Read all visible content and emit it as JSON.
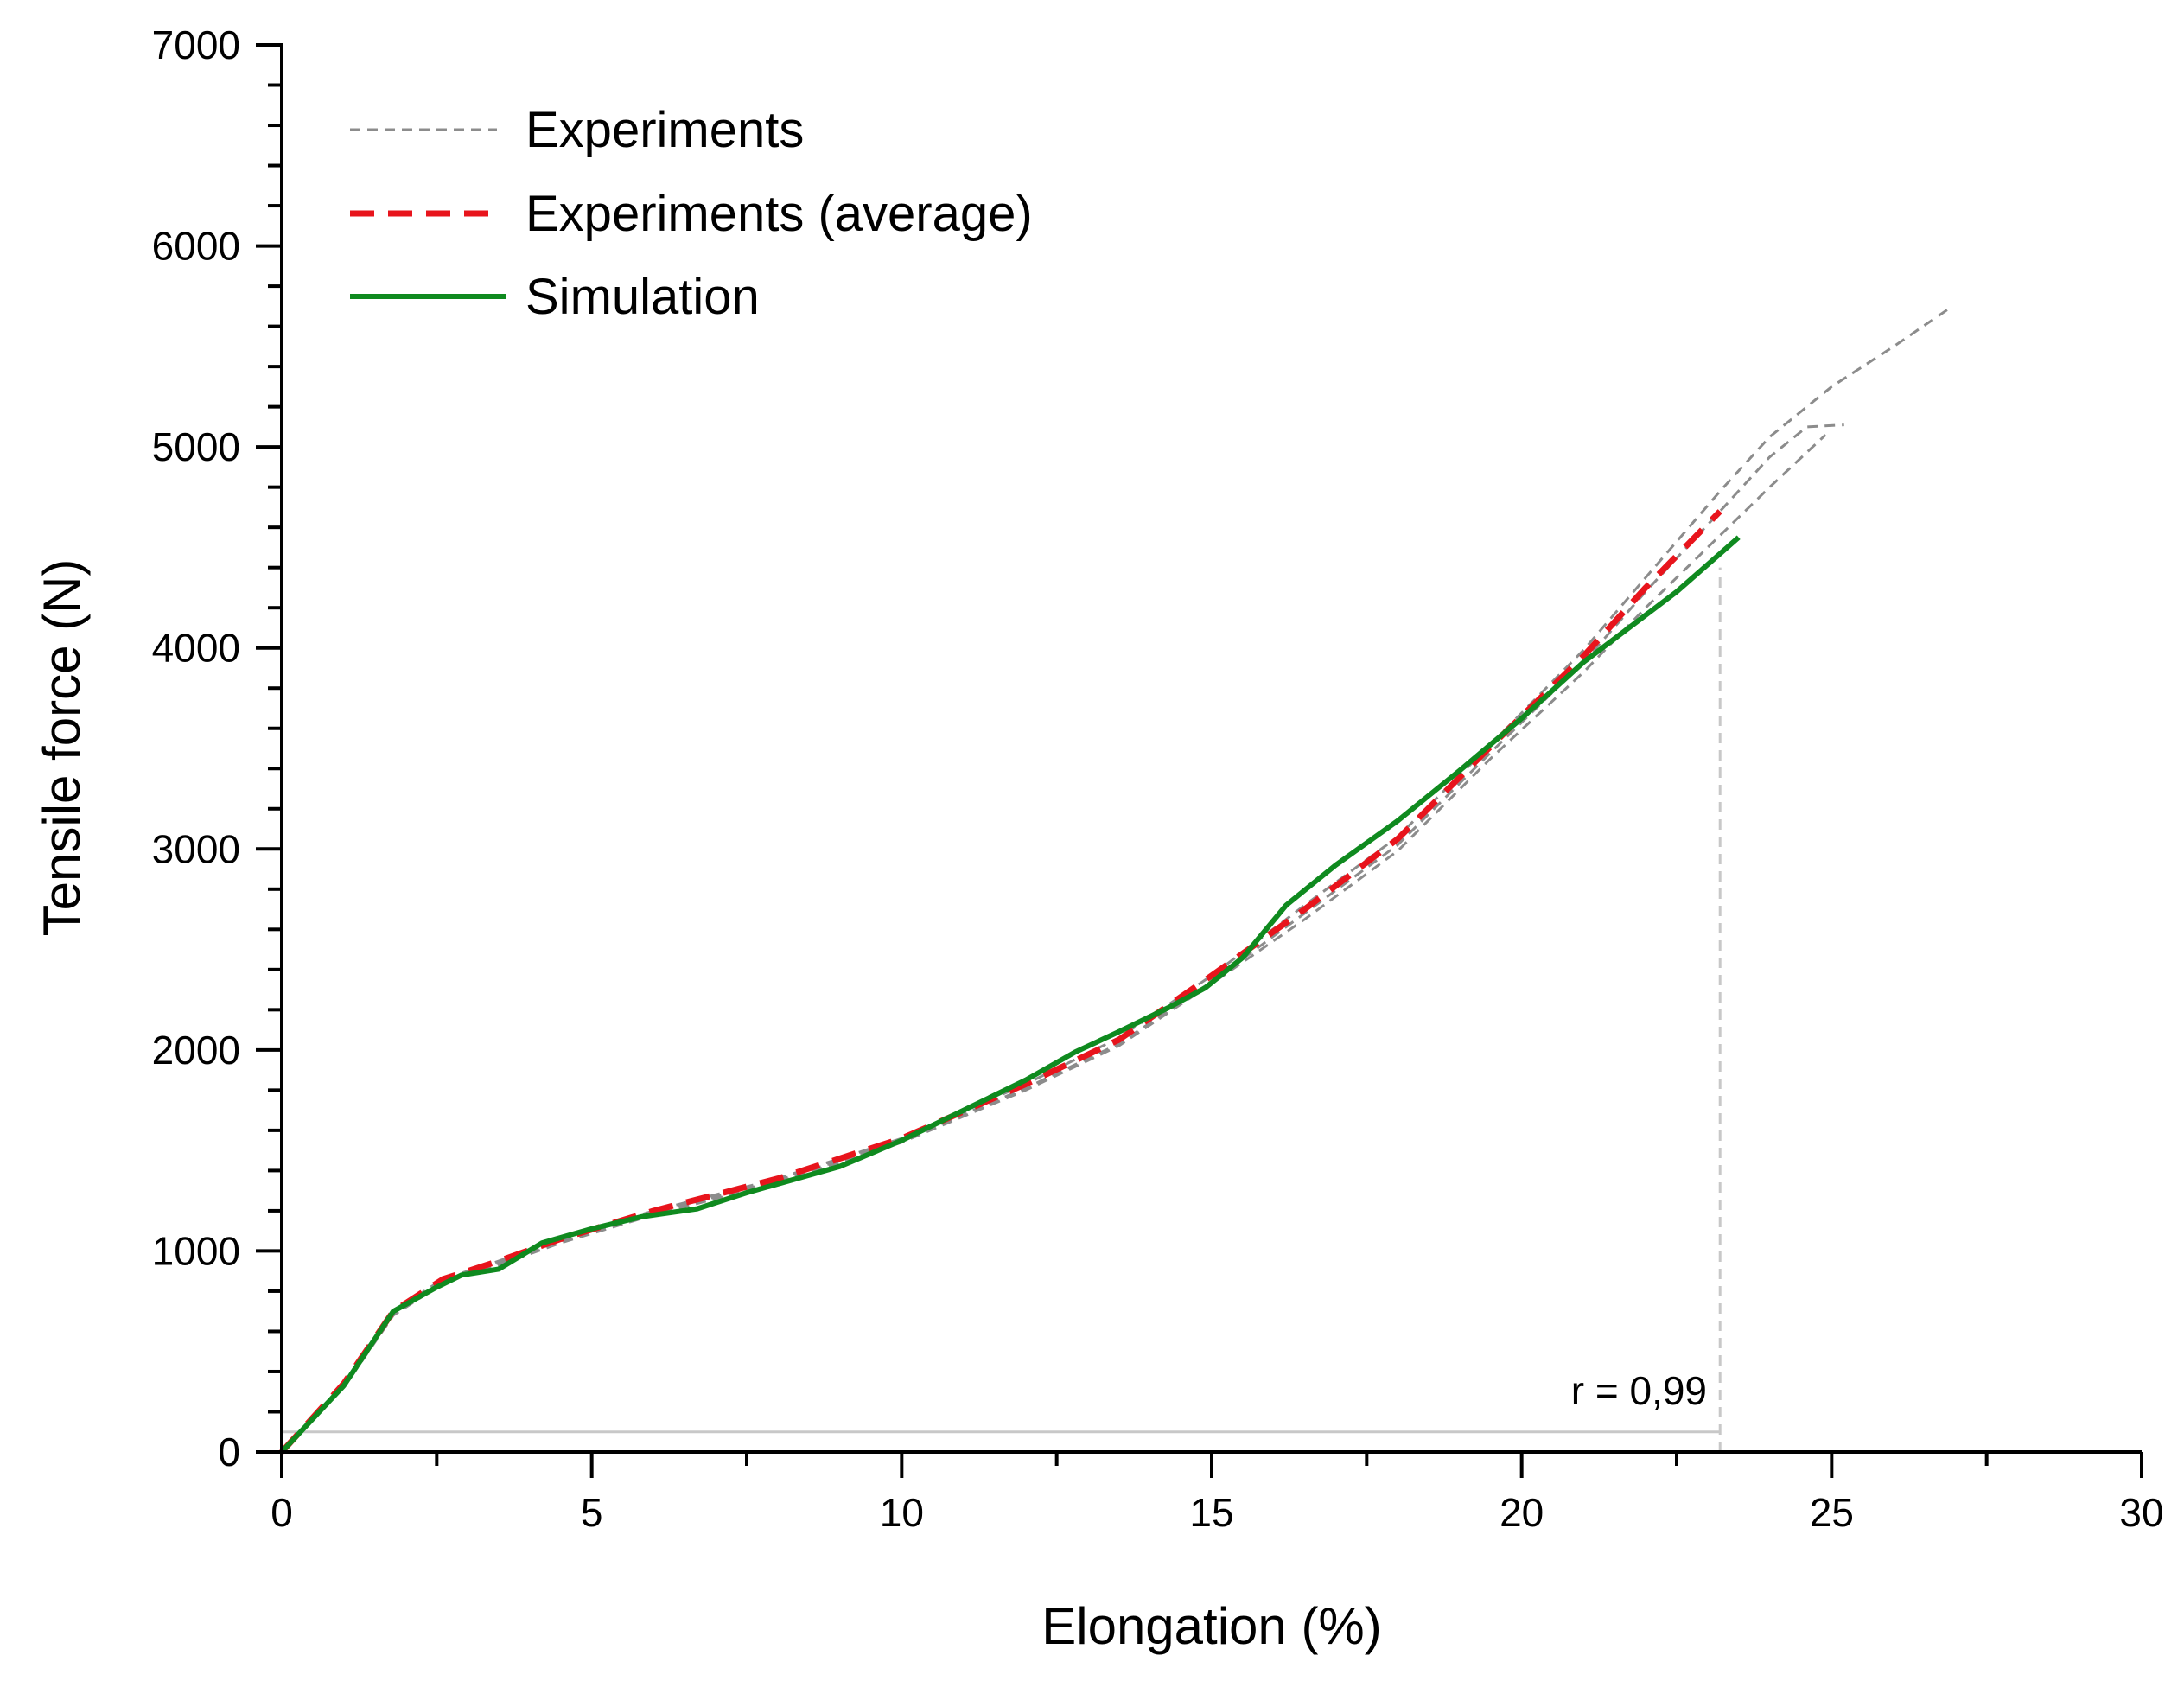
{
  "chart_data": {
    "type": "line",
    "title": "",
    "xlabel": "Elongation (%)",
    "ylabel": "Tensile force (N)",
    "xlim": [
      0,
      30
    ],
    "ylim": [
      0,
      7000
    ],
    "xticks": [
      0,
      5,
      10,
      15,
      20,
      25,
      30
    ],
    "xtick_labels": [
      "0",
      "5",
      "10",
      "15",
      "20",
      "25",
      "30"
    ],
    "yticks": [
      0,
      1000,
      2000,
      3000,
      4000,
      5000,
      6000,
      7000
    ],
    "ytick_labels": [
      "0",
      "1000",
      "2000",
      "3000",
      "4000",
      "5000",
      "6000",
      "7000"
    ],
    "grid": false,
    "legend_position": "top-left",
    "legend": [
      "Experiments",
      "Experiments (average)",
      "Simulation"
    ],
    "series": [
      {
        "name": "Experiments",
        "style": "dashed-thin",
        "color": "#8c8c8c",
        "points": [
          [
            0,
            0
          ],
          [
            1,
            340
          ],
          [
            1.8,
            700
          ],
          [
            2.6,
            860
          ],
          [
            3.5,
            950
          ],
          [
            4.5,
            1060
          ],
          [
            6,
            1200
          ],
          [
            8,
            1360
          ],
          [
            10,
            1560
          ],
          [
            12,
            1830
          ],
          [
            13.5,
            2060
          ],
          [
            15,
            2370
          ],
          [
            16.5,
            2720
          ],
          [
            18,
            3060
          ],
          [
            19.5,
            3520
          ],
          [
            21,
            3990
          ],
          [
            22,
            4350
          ],
          [
            23.2,
            4780
          ],
          [
            24,
            5050
          ],
          [
            25,
            5300
          ],
          [
            26,
            5500
          ],
          [
            26.9,
            5690
          ]
        ]
      },
      {
        "name": "Experiments",
        "style": "dashed-thin",
        "color": "#8c8c8c",
        "points": [
          [
            0,
            0
          ],
          [
            1,
            330
          ],
          [
            1.8,
            690
          ],
          [
            2.6,
            850
          ],
          [
            3.5,
            940
          ],
          [
            4.5,
            1050
          ],
          [
            6,
            1190
          ],
          [
            8,
            1350
          ],
          [
            10,
            1550
          ],
          [
            12,
            1810
          ],
          [
            13.5,
            2030
          ],
          [
            15,
            2340
          ],
          [
            16.5,
            2680
          ],
          [
            18,
            3020
          ],
          [
            19.5,
            3480
          ],
          [
            21,
            3930
          ],
          [
            22,
            4280
          ],
          [
            23.2,
            4680
          ],
          [
            24,
            4950
          ],
          [
            24.6,
            5100
          ],
          [
            25.2,
            5110
          ]
        ]
      },
      {
        "name": "Experiments",
        "style": "dashed-thin",
        "color": "#8c8c8c",
        "points": [
          [
            0,
            0
          ],
          [
            1,
            320
          ],
          [
            1.8,
            680
          ],
          [
            2.6,
            840
          ],
          [
            3.5,
            930
          ],
          [
            4.5,
            1040
          ],
          [
            6,
            1180
          ],
          [
            8,
            1340
          ],
          [
            10,
            1540
          ],
          [
            12,
            1800
          ],
          [
            13.5,
            2020
          ],
          [
            15,
            2330
          ],
          [
            16.5,
            2650
          ],
          [
            18,
            2990
          ],
          [
            19.5,
            3450
          ],
          [
            21,
            3880
          ],
          [
            22,
            4200
          ],
          [
            23.2,
            4560
          ],
          [
            24,
            4800
          ],
          [
            24.9,
            5060
          ]
        ]
      },
      {
        "name": "Experiments (average)",
        "style": "dashed-thick",
        "color": "#e8141c",
        "points": [
          [
            0,
            0
          ],
          [
            1,
            340
          ],
          [
            1.8,
            700
          ],
          [
            2.6,
            860
          ],
          [
            3.5,
            950
          ],
          [
            4.5,
            1060
          ],
          [
            6,
            1200
          ],
          [
            8,
            1360
          ],
          [
            10,
            1560
          ],
          [
            12,
            1830
          ],
          [
            13.5,
            2050
          ],
          [
            15,
            2370
          ],
          [
            16.5,
            2700
          ],
          [
            18,
            3050
          ],
          [
            19.5,
            3510
          ],
          [
            21,
            3960
          ],
          [
            22,
            4300
          ],
          [
            23.2,
            4680
          ]
        ]
      },
      {
        "name": "Simulation",
        "style": "solid",
        "color": "#0f8a1f",
        "points": [
          [
            0,
            0
          ],
          [
            1,
            330
          ],
          [
            1.8,
            700
          ],
          [
            2.5,
            820
          ],
          [
            2.9,
            880
          ],
          [
            3.5,
            910
          ],
          [
            4.2,
            1040
          ],
          [
            5,
            1110
          ],
          [
            5.8,
            1170
          ],
          [
            6.7,
            1210
          ],
          [
            7.5,
            1290
          ],
          [
            9,
            1420
          ],
          [
            10,
            1550
          ],
          [
            11,
            1700
          ],
          [
            12,
            1850
          ],
          [
            12.8,
            1990
          ],
          [
            13.5,
            2090
          ],
          [
            14.3,
            2210
          ],
          [
            14.9,
            2310
          ],
          [
            15.5,
            2460
          ],
          [
            16.2,
            2720
          ],
          [
            17,
            2920
          ],
          [
            18,
            3140
          ],
          [
            19,
            3390
          ],
          [
            20,
            3650
          ],
          [
            21,
            3930
          ],
          [
            22.5,
            4280
          ],
          [
            23.5,
            4550
          ]
        ]
      }
    ],
    "annotations": [
      {
        "text": "r = 0,99",
        "x": 23.2,
        "y": 100
      }
    ]
  }
}
